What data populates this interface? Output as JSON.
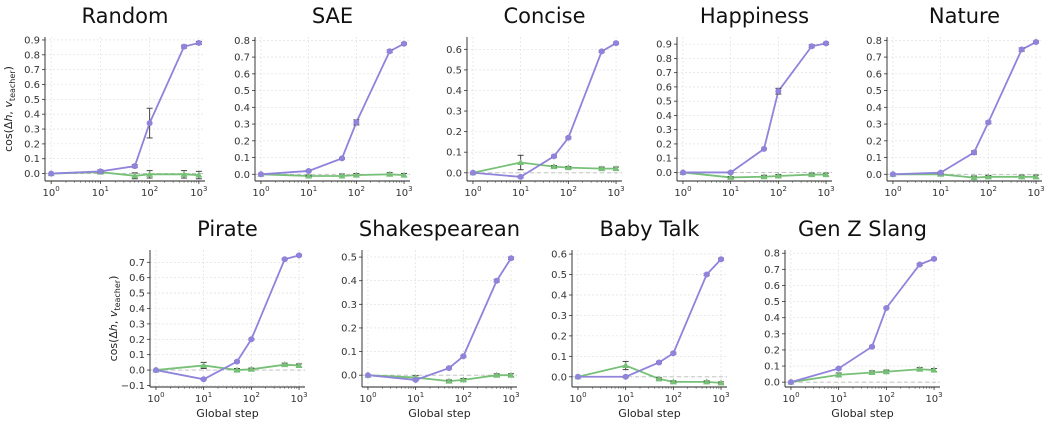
{
  "colors": {
    "trained": "#8f83db",
    "baseline": "#77c077",
    "zero_line": "#bbbbbb",
    "error_bar": "#444444",
    "grid": "#dddddd"
  },
  "chart_data": [
    {
      "type": "line",
      "title": "Random",
      "ylabel_parts": {
        "pre": "cos(Δ",
        "h": "h",
        "sep": ", ",
        "v": "v",
        "sub": "teacher",
        "post": ")"
      },
      "xlabel": "",
      "xscale": "log",
      "x": [
        1,
        10,
        50,
        100,
        500,
        1000
      ],
      "yticks": [
        "0.0",
        "0.1",
        "0.2",
        "0.3",
        "0.4",
        "0.5",
        "0.6",
        "0.7",
        "0.8",
        "0.9"
      ],
      "ylim": [
        -0.05,
        0.92
      ],
      "series": [
        {
          "role": "trained",
          "values": [
            0.0,
            0.015,
            0.05,
            0.34,
            0.855,
            0.88
          ],
          "err": [
            0,
            0.01,
            0.01,
            0.1,
            0.01,
            0.01
          ]
        },
        {
          "role": "baseline",
          "values": [
            0.0,
            0.01,
            -0.015,
            -0.005,
            -0.005,
            -0.01
          ],
          "err": [
            0,
            0.005,
            0.02,
            0.025,
            0.025,
            0.025
          ]
        }
      ]
    },
    {
      "type": "line",
      "title": "SAE",
      "xlabel": "",
      "xscale": "log",
      "x": [
        1,
        10,
        50,
        100,
        500,
        1000
      ],
      "yticks": [
        "0.0",
        "0.1",
        "0.2",
        "0.3",
        "0.4",
        "0.5",
        "0.6",
        "0.7",
        "0.8"
      ],
      "ylim": [
        -0.04,
        0.82
      ],
      "series": [
        {
          "role": "trained",
          "values": [
            0.0,
            0.02,
            0.095,
            0.31,
            0.735,
            0.78
          ],
          "err": [
            0,
            0.005,
            0.005,
            0.015,
            0.008,
            0.006
          ]
        },
        {
          "role": "baseline",
          "values": [
            0.0,
            -0.01,
            -0.01,
            -0.005,
            0.0,
            -0.005
          ],
          "err": [
            0,
            0.005,
            0.012,
            0.01,
            0.01,
            0.01
          ]
        }
      ]
    },
    {
      "type": "line",
      "title": "Concise",
      "xlabel": "",
      "xscale": "log",
      "x": [
        1,
        10,
        50,
        100,
        500,
        1000
      ],
      "yticks": [
        "0.0",
        "0.1",
        "0.2",
        "0.3",
        "0.4",
        "0.5",
        "0.6"
      ],
      "ylim": [
        -0.04,
        0.66
      ],
      "series": [
        {
          "role": "trained",
          "values": [
            0.0,
            -0.02,
            0.08,
            0.17,
            0.59,
            0.63
          ],
          "err": [
            0,
            0.005,
            0.005,
            0.005,
            0.005,
            0.005
          ]
        },
        {
          "role": "baseline",
          "values": [
            0.0,
            0.05,
            0.03,
            0.025,
            0.02,
            0.02
          ],
          "err": [
            0,
            0.035,
            0.005,
            0.005,
            0.008,
            0.008
          ]
        }
      ]
    },
    {
      "type": "line",
      "title": "Happiness",
      "xlabel": "",
      "xscale": "log",
      "x": [
        1,
        10,
        50,
        100,
        500,
        1000
      ],
      "yticks": [
        "0.0",
        "0.1",
        "0.2",
        "0.3",
        "0.4",
        "0.5",
        "0.6",
        "0.7",
        "0.8",
        "0.9"
      ],
      "ylim": [
        -0.06,
        0.95
      ],
      "series": [
        {
          "role": "trained",
          "values": [
            0.0,
            0.0,
            0.165,
            0.57,
            0.885,
            0.905
          ],
          "err": [
            0,
            0.005,
            0.005,
            0.02,
            0.01,
            0.008
          ]
        },
        {
          "role": "baseline",
          "values": [
            0.0,
            -0.035,
            -0.03,
            -0.025,
            -0.015,
            -0.015
          ],
          "err": [
            0,
            0.005,
            0.01,
            0.01,
            0.01,
            0.01
          ]
        }
      ]
    },
    {
      "type": "line",
      "title": "Nature",
      "xlabel": "",
      "xscale": "log",
      "x": [
        1,
        10,
        50,
        100,
        500,
        1000
      ],
      "yticks": [
        "0.0",
        "0.1",
        "0.2",
        "0.3",
        "0.4",
        "0.5",
        "0.6",
        "0.7",
        "0.8"
      ],
      "ylim": [
        -0.04,
        0.82
      ],
      "series": [
        {
          "role": "trained",
          "values": [
            0.0,
            0.01,
            0.13,
            0.31,
            0.745,
            0.79
          ],
          "err": [
            0,
            0.005,
            0.01,
            0.008,
            0.01,
            0.006
          ]
        },
        {
          "role": "baseline",
          "values": [
            0.0,
            0.0,
            -0.02,
            -0.015,
            -0.015,
            -0.015
          ],
          "err": [
            0,
            0.005,
            0.01,
            0.008,
            0.01,
            0.01
          ]
        }
      ]
    },
    {
      "type": "line",
      "title": "Pirate",
      "ylabel_parts": {
        "pre": "cos(Δ",
        "h": "h",
        "sep": ", ",
        "v": "v",
        "sub": "teacher",
        "post": ")"
      },
      "xlabel": "Global step",
      "xscale": "log",
      "x": [
        1,
        10,
        50,
        100,
        500,
        1000
      ],
      "yticks": [
        "−0.1",
        "0.0",
        "0.1",
        "0.2",
        "0.3",
        "0.4",
        "0.5",
        "0.6",
        "0.7"
      ],
      "ylim": [
        -0.11,
        0.78
      ],
      "series": [
        {
          "role": "trained",
          "values": [
            0.0,
            -0.06,
            0.055,
            0.2,
            0.72,
            0.745
          ],
          "err": [
            0,
            0.005,
            0.005,
            0.005,
            0.005,
            0.005
          ]
        },
        {
          "role": "baseline",
          "values": [
            0.0,
            0.03,
            0.0,
            0.005,
            0.035,
            0.03
          ],
          "err": [
            0,
            0.02,
            0.01,
            0.008,
            0.01,
            0.01
          ]
        }
      ]
    },
    {
      "type": "line",
      "title": "Shakespearean",
      "xlabel": "Global step",
      "xscale": "log",
      "x": [
        1,
        10,
        50,
        100,
        500,
        1000
      ],
      "yticks": [
        "0.0",
        "0.1",
        "0.2",
        "0.3",
        "0.4",
        "0.5"
      ],
      "ylim": [
        -0.05,
        0.53
      ],
      "series": [
        {
          "role": "trained",
          "values": [
            0.0,
            -0.02,
            0.03,
            0.08,
            0.4,
            0.495
          ],
          "err": [
            0,
            0.003,
            0.004,
            0.004,
            0.006,
            0.005
          ]
        },
        {
          "role": "baseline",
          "values": [
            0.0,
            -0.01,
            -0.025,
            -0.02,
            0.0,
            0.0
          ],
          "err": [
            0,
            0.008,
            0.005,
            0.006,
            0.006,
            0.006
          ]
        }
      ]
    },
    {
      "type": "line",
      "title": "Baby Talk",
      "xlabel": "Global step",
      "xscale": "log",
      "x": [
        1,
        10,
        50,
        100,
        500,
        1000
      ],
      "yticks": [
        "0.0",
        "0.1",
        "0.2",
        "0.3",
        "0.4",
        "0.5",
        "0.6"
      ],
      "ylim": [
        -0.05,
        0.62
      ],
      "series": [
        {
          "role": "trained",
          "values": [
            0.0,
            0.0,
            0.07,
            0.115,
            0.5,
            0.575
          ],
          "err": [
            0,
            0.004,
            0.005,
            0.005,
            0.005,
            0.005
          ]
        },
        {
          "role": "baseline",
          "values": [
            0.0,
            0.055,
            -0.01,
            -0.025,
            -0.025,
            -0.03
          ],
          "err": [
            0,
            0.02,
            0.005,
            0.005,
            0.005,
            0.005
          ]
        }
      ]
    },
    {
      "type": "line",
      "title": "Gen Z Slang",
      "xlabel": "Global step",
      "xscale": "log",
      "x": [
        1,
        10,
        50,
        100,
        500,
        1000
      ],
      "yticks": [
        "0.0",
        "0.1",
        "0.2",
        "0.3",
        "0.4",
        "0.5",
        "0.6",
        "0.7",
        "0.8"
      ],
      "ylim": [
        -0.03,
        0.82
      ],
      "series": [
        {
          "role": "trained",
          "values": [
            0.0,
            0.085,
            0.22,
            0.46,
            0.73,
            0.765
          ],
          "err": [
            0,
            0.005,
            0.005,
            0.005,
            0.006,
            0.005
          ]
        },
        {
          "role": "baseline",
          "values": [
            0.0,
            0.045,
            0.06,
            0.065,
            0.08,
            0.075
          ],
          "err": [
            0,
            0.012,
            0.01,
            0.01,
            0.01,
            0.01
          ]
        }
      ]
    }
  ]
}
